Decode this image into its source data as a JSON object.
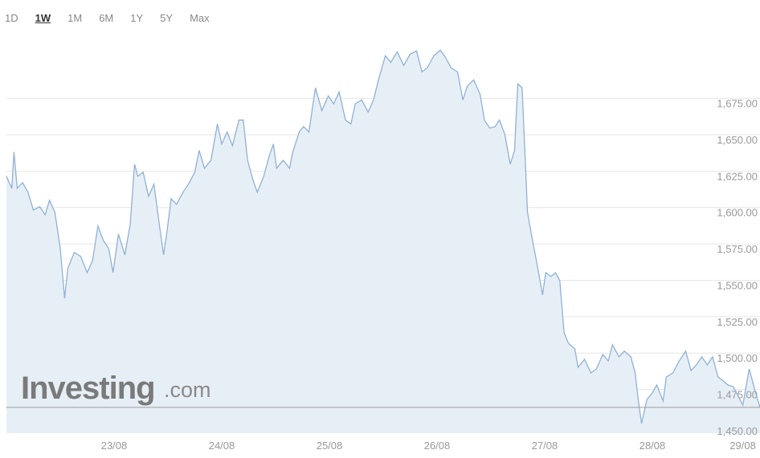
{
  "range_buttons": [
    "1D",
    "1W",
    "1M",
    "6M",
    "1Y",
    "5Y",
    "Max"
  ],
  "active_range": 1,
  "watermark": {
    "name": "Investing",
    "suffix": ".com"
  },
  "chart_data": {
    "type": "area",
    "grid": true,
    "xlim": [
      0,
      7
    ],
    "xticks": [
      {
        "value": 1,
        "label": "23/08"
      },
      {
        "value": 2,
        "label": "24/08"
      },
      {
        "value": 3,
        "label": "25/08"
      },
      {
        "value": 4,
        "label": "26/08"
      },
      {
        "value": 5,
        "label": "27/08"
      },
      {
        "value": 6,
        "label": "28/08"
      },
      {
        "value": 6.84,
        "label": "29/08"
      }
    ],
    "ylim": [
      1445,
      1720
    ],
    "yticks": [
      {
        "value": 1450,
        "label": "1,450.00"
      },
      {
        "value": 1475,
        "label": "1,475.00"
      },
      {
        "value": 1500,
        "label": "1,500.00"
      },
      {
        "value": 1525,
        "label": "1,525.00"
      },
      {
        "value": 1550,
        "label": "1,550.00"
      },
      {
        "value": 1575,
        "label": "1,575.00"
      },
      {
        "value": 1600,
        "label": "1,600.00"
      },
      {
        "value": 1625,
        "label": "1,625.00"
      },
      {
        "value": 1650,
        "label": "1,650.00"
      },
      {
        "value": 1675,
        "label": "1,675.00"
      }
    ],
    "series": [
      {
        "color": "#8fb1d6",
        "fill": "#e7eff6",
        "x": [
          0,
          0.05,
          0.07,
          0.1,
          0.15,
          0.2,
          0.25,
          0.31,
          0.36,
          0.4,
          0.45,
          0.5,
          0.54,
          0.57,
          0.63,
          0.69,
          0.75,
          0.8,
          0.85,
          0.9,
          0.95,
          0.99,
          1.04,
          1.1,
          1.15,
          1.19,
          1.22,
          1.27,
          1.32,
          1.37,
          1.42,
          1.46,
          1.49,
          1.53,
          1.58,
          1.64,
          1.69,
          1.75,
          1.79,
          1.84,
          1.9,
          1.96,
          2.0,
          2.05,
          2.1,
          2.16,
          2.2,
          2.24,
          2.29,
          2.33,
          2.39,
          2.44,
          2.48,
          2.51,
          2.57,
          2.63,
          2.66,
          2.72,
          2.76,
          2.81,
          2.87,
          2.93,
          2.99,
          3.04,
          3.09,
          3.15,
          3.2,
          3.24,
          3.3,
          3.36,
          3.41,
          3.46,
          3.52,
          3.57,
          3.63,
          3.69,
          3.75,
          3.81,
          3.86,
          3.91,
          3.97,
          4.03,
          4.08,
          4.13,
          4.19,
          4.24,
          4.28,
          4.34,
          4.4,
          4.44,
          4.49,
          4.54,
          4.58,
          4.63,
          4.68,
          4.72,
          4.75,
          4.79,
          4.84,
          4.88,
          4.93,
          4.98,
          5.01,
          5.06,
          5.1,
          5.14,
          5.18,
          5.22,
          5.28,
          5.31,
          5.37,
          5.43,
          5.48,
          5.54,
          5.59,
          5.63,
          5.69,
          5.74,
          5.8,
          5.84,
          5.87,
          5.9,
          5.95,
          6.0,
          6.04,
          6.1,
          6.13,
          6.19,
          6.25,
          6.31,
          6.36,
          6.41,
          6.46,
          6.51,
          6.56,
          6.61,
          6.66,
          6.7,
          6.75,
          6.79,
          6.84,
          6.9,
          6.96,
          7.0
        ],
        "values": [
          1621.5,
          1613.2,
          1638.1,
          1613.2,
          1617.1,
          1610.5,
          1598.3,
          1600.6,
          1595.0,
          1605.0,
          1596.7,
          1571.9,
          1537.7,
          1558.1,
          1569.1,
          1566.4,
          1555.3,
          1563.6,
          1587.3,
          1577.4,
          1571.9,
          1555.3,
          1581.8,
          1567.5,
          1588.4,
          1629.8,
          1621.5,
          1624.3,
          1607.7,
          1616.0,
          1588.4,
          1567.5,
          1582.9,
          1606.1,
          1602.2,
          1610.5,
          1616.0,
          1624.3,
          1639.2,
          1627.0,
          1632.5,
          1657.4,
          1643.6,
          1651.9,
          1642.5,
          1660.1,
          1660.1,
          1632.5,
          1618.8,
          1610.5,
          1621.5,
          1635.3,
          1643.6,
          1627.0,
          1632.5,
          1627.0,
          1638.1,
          1651.9,
          1655.7,
          1651.9,
          1682.2,
          1666.7,
          1676.7,
          1671.2,
          1679.4,
          1660.1,
          1657.4,
          1671.2,
          1673.9,
          1665.6,
          1673.9,
          1688.8,
          1704.3,
          1699.8,
          1707.0,
          1697.6,
          1705.4,
          1707.6,
          1693.2,
          1696.0,
          1704.3,
          1708.1,
          1703.1,
          1696.0,
          1693.2,
          1673.9,
          1683.3,
          1687.7,
          1677.8,
          1660.1,
          1654.6,
          1655.7,
          1660.1,
          1650.2,
          1629.8,
          1639.2,
          1685.0,
          1682.2,
          1596.7,
          1580.1,
          1560.8,
          1539.9,
          1555.3,
          1552.6,
          1555.3,
          1549.8,
          1514.0,
          1506.8,
          1502.9,
          1490.2,
          1495.7,
          1486.4,
          1489.1,
          1499.1,
          1494.6,
          1505.7,
          1497.4,
          1501.3,
          1497.4,
          1486.4,
          1467.1,
          1451.6,
          1468.2,
          1472.6,
          1478.1,
          1467.1,
          1483.6,
          1486.4,
          1494.6,
          1501.3,
          1488.0,
          1491.9,
          1497.4,
          1491.9,
          1497.4,
          1483.6,
          1480.9,
          1478.1,
          1477.0,
          1471.5,
          1464.3,
          1489.1,
          1472.6,
          1462.7
        ]
      }
    ]
  }
}
